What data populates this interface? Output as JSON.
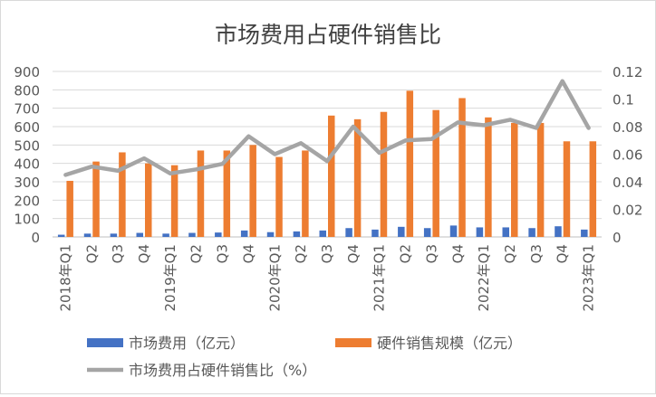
{
  "chart_data": {
    "type": "bar",
    "title": "市场费用占硬件销售比",
    "categories": [
      "2018年Q1",
      "Q2",
      "Q3",
      "Q4",
      "2019年Q1",
      "Q2",
      "Q3",
      "Q4",
      "2020年Q1",
      "Q2",
      "Q3",
      "Q4",
      "2021年Q1",
      "Q2",
      "Q3",
      "Q4",
      "2022年Q1",
      "Q2",
      "Q3",
      "Q4",
      "2023年Q1"
    ],
    "y_left": {
      "ylim": [
        0,
        900
      ],
      "ticks": [
        "0",
        "100",
        "200",
        "300",
        "400",
        "500",
        "600",
        "700",
        "800",
        "900"
      ]
    },
    "y_right": {
      "ylim": [
        0,
        0.12
      ],
      "ticks": [
        "0",
        "0.02",
        "0.04",
        "0.06",
        "0.08",
        "0.1",
        "0.12"
      ]
    },
    "grid": true,
    "legend_position": "bottom",
    "series": [
      {
        "name": "市场费用（亿元）",
        "type": "bar",
        "axis": "left",
        "color": "#4472c4",
        "values": [
          12,
          18,
          18,
          22,
          18,
          22,
          24,
          35,
          26,
          30,
          35,
          48,
          40,
          55,
          48,
          62,
          52,
          52,
          48,
          58,
          40
        ]
      },
      {
        "name": "硬件销售规模（亿元）",
        "type": "bar",
        "axis": "left",
        "color": "#ed7d31",
        "values": [
          305,
          410,
          460,
          400,
          390,
          470,
          470,
          500,
          435,
          470,
          660,
          640,
          680,
          795,
          690,
          755,
          650,
          620,
          620,
          520,
          520
        ]
      },
      {
        "name": "市场费用占硬件销售比（%）",
        "type": "line",
        "axis": "right",
        "color": "#a5a5a5",
        "values": [
          0.045,
          0.051,
          0.048,
          0.057,
          0.046,
          0.049,
          0.053,
          0.073,
          0.06,
          0.068,
          0.055,
          0.08,
          0.061,
          0.07,
          0.071,
          0.083,
          0.081,
          0.085,
          0.079,
          0.113,
          0.079
        ]
      }
    ]
  }
}
